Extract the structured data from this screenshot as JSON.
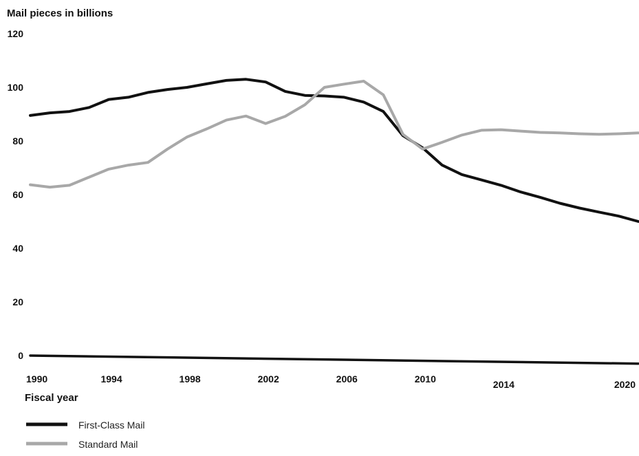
{
  "chart_data": {
    "type": "line",
    "ylabel": "Mail pieces in billions",
    "xlabel": "Fiscal year",
    "ylim": [
      0,
      120
    ],
    "xlim": [
      1990,
      2021
    ],
    "y_ticks": [
      0,
      20,
      40,
      60,
      80,
      100,
      120
    ],
    "x_ticks": [
      1990,
      1994,
      1998,
      2002,
      2006,
      2010,
      2014,
      2020
    ],
    "grid": false,
    "legend_position": "bottom-left",
    "series": [
      {
        "name": "First-Class Mail",
        "color": "#111111",
        "x": [
          1990,
          1991,
          1992,
          1993,
          1994,
          1995,
          1996,
          1997,
          1998,
          1999,
          2000,
          2001,
          2002,
          2003,
          2004,
          2005,
          2006,
          2007,
          2008,
          2009,
          2010,
          2011,
          2012,
          2013,
          2014,
          2015,
          2016,
          2017,
          2018,
          2019,
          2020,
          2021
        ],
        "values": [
          89.5,
          90.5,
          91,
          92.5,
          95.5,
          96.3,
          98.1,
          99.2,
          100,
          101.3,
          102.6,
          103,
          102,
          98.5,
          97,
          96.8,
          96.3,
          94.5,
          91,
          82,
          77.5,
          71,
          67.5,
          65.5,
          63.5,
          61,
          59,
          56.8,
          55,
          53.5,
          52,
          50
        ]
      },
      {
        "name": "Standard Mail",
        "color": "#a8a8a8",
        "x": [
          1990,
          1991,
          1992,
          1993,
          1994,
          1995,
          1996,
          1997,
          1998,
          1999,
          2000,
          2001,
          2002,
          2003,
          2004,
          2005,
          2006,
          2007,
          2008,
          2009,
          2010,
          2011,
          2012,
          2013,
          2014,
          2015,
          2016,
          2017,
          2018,
          2019,
          2020,
          2021
        ],
        "values": [
          63.7,
          62.8,
          63.5,
          66.5,
          69.5,
          71,
          72,
          77,
          81.5,
          84.5,
          87.8,
          89.3,
          86.5,
          89.2,
          93.5,
          100,
          101.2,
          102.3,
          97.2,
          82.5,
          77,
          79.5,
          82.2,
          84,
          84.2,
          83.7,
          83.2,
          83,
          82.7,
          82.5,
          82.7,
          83
        ]
      },
      {
        "name": "",
        "color": "#111111",
        "x": [
          1990,
          2021
        ],
        "values": [
          0,
          -3
        ]
      }
    ]
  }
}
